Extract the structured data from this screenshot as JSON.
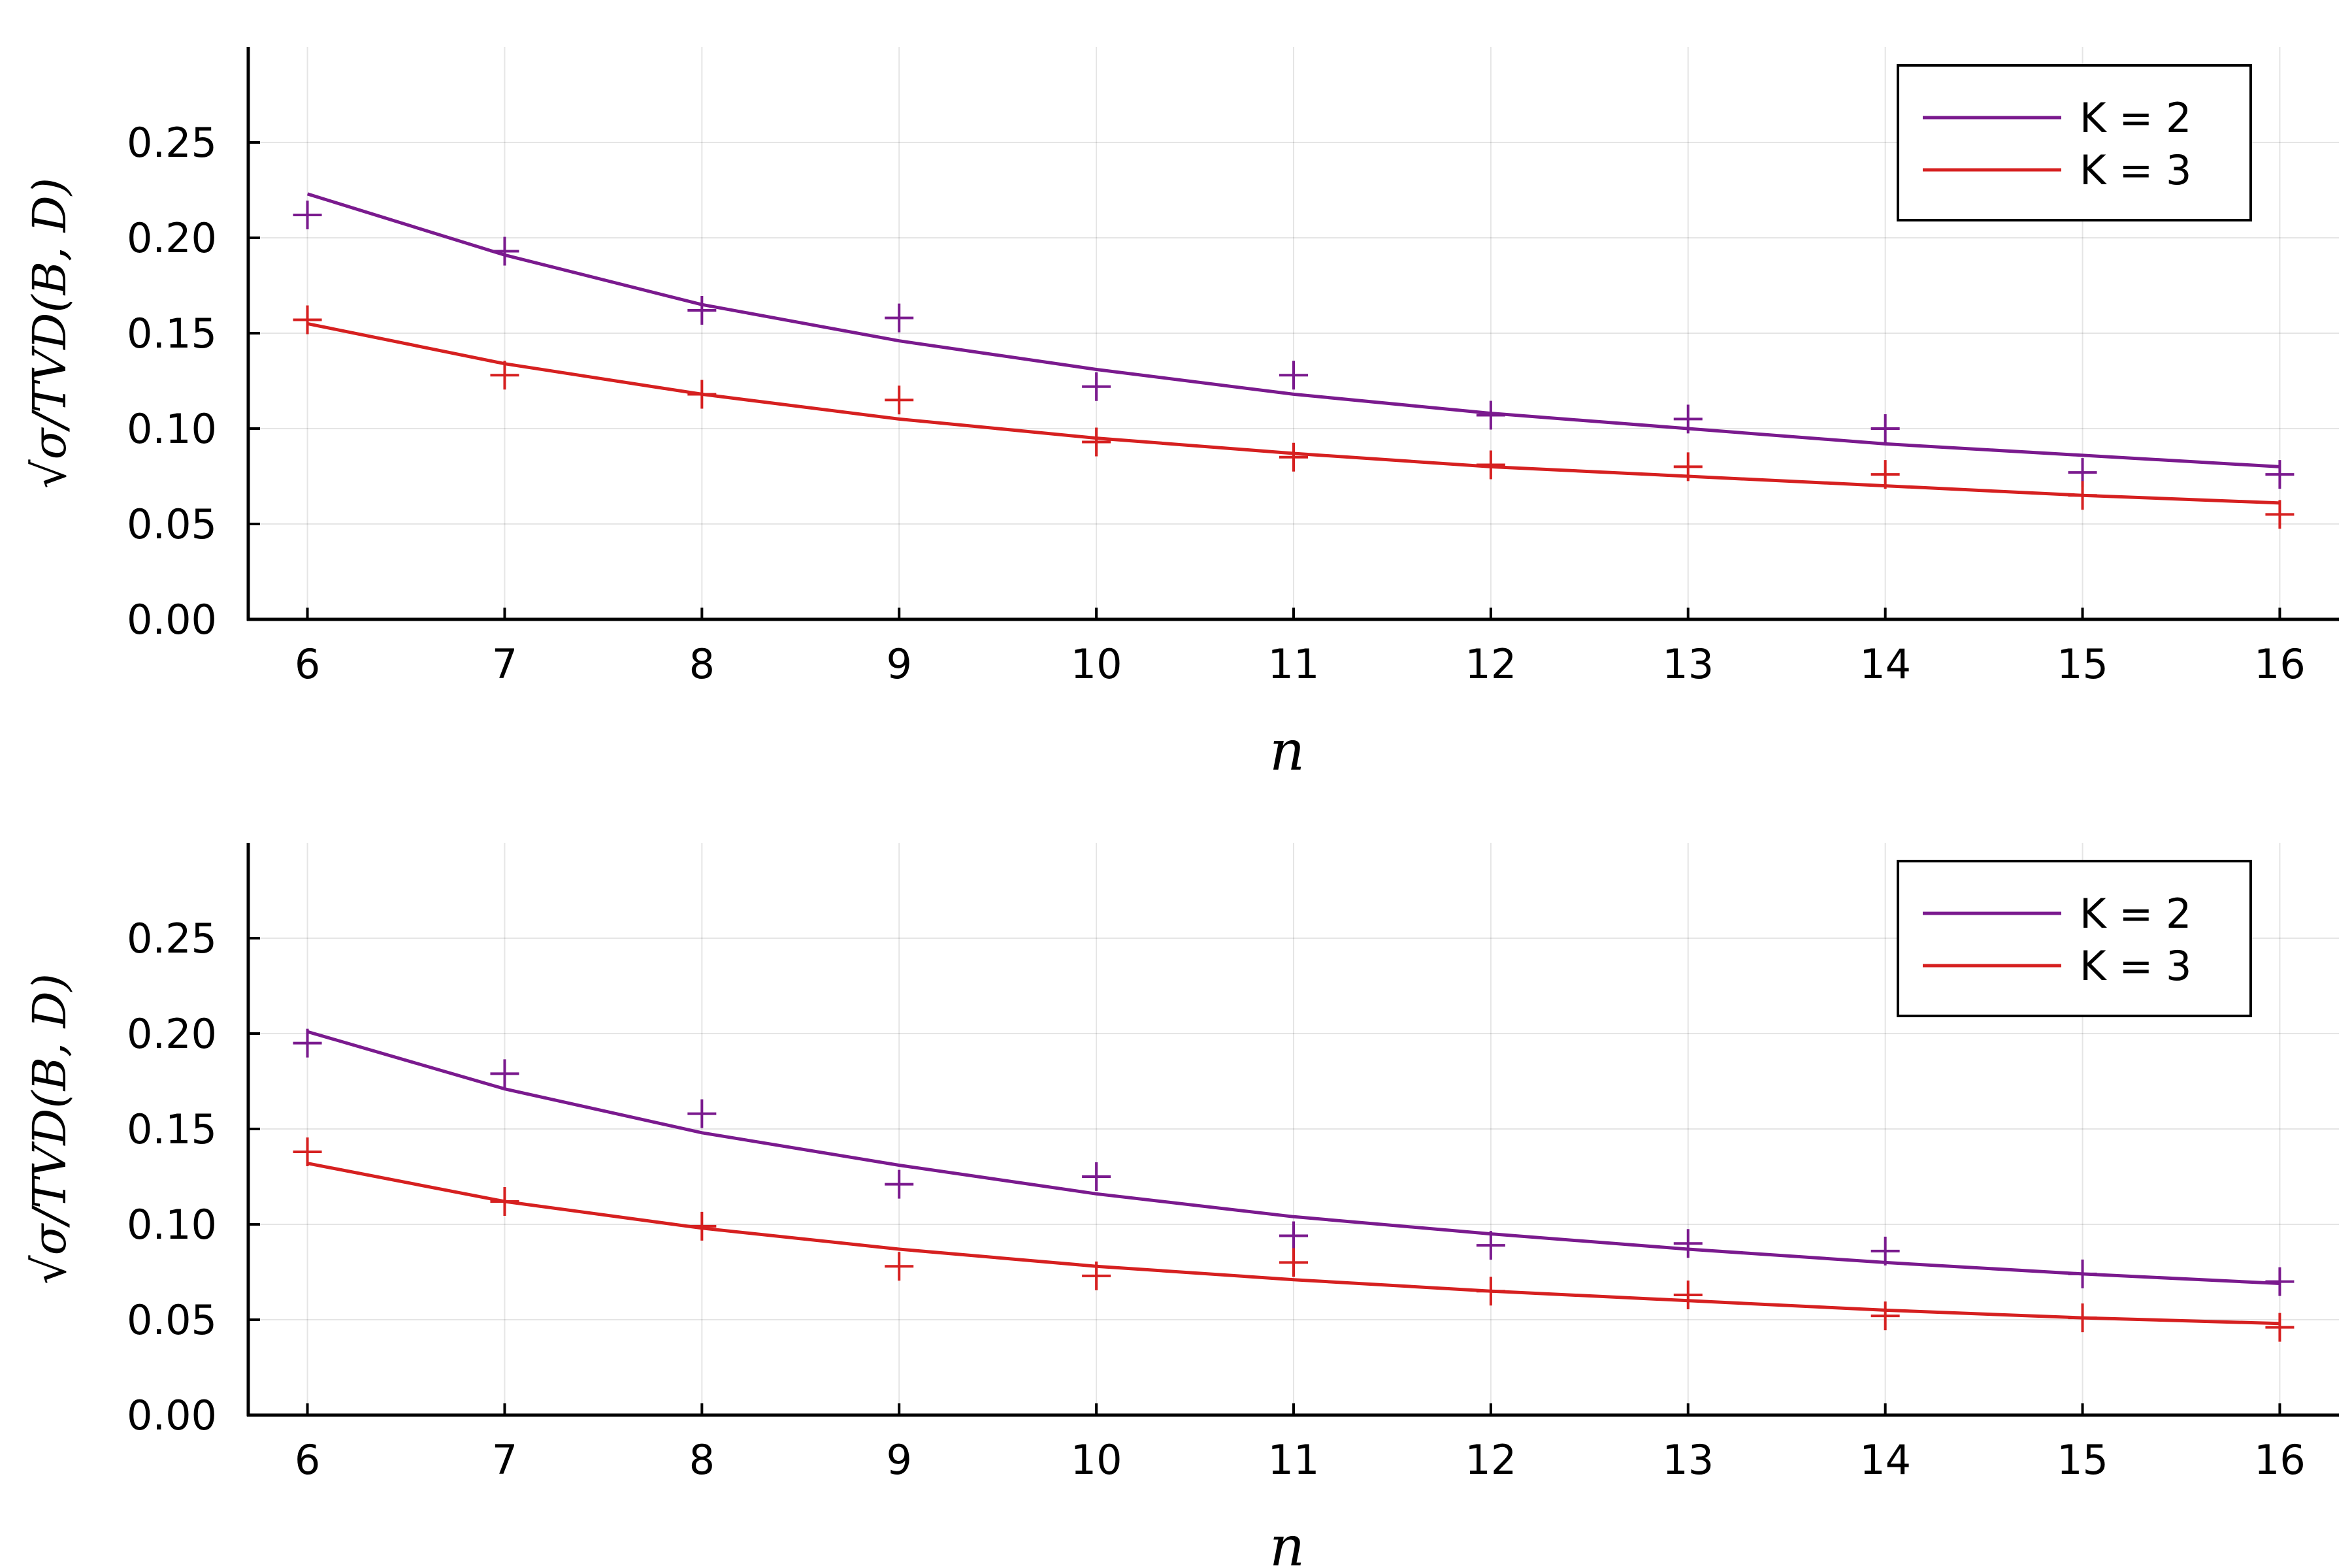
{
  "chart_data": [
    {
      "type": "scatter",
      "xlabel": "n",
      "ylabel": "√σ/TVD(B, D)",
      "x": [
        6,
        7,
        8,
        9,
        10,
        11,
        12,
        13,
        14,
        15,
        16
      ],
      "xticks": [
        "6",
        "7",
        "8",
        "9",
        "10",
        "11",
        "12",
        "13",
        "14",
        "15",
        "16"
      ],
      "yticks": [
        "0.00",
        "0.05",
        "0.10",
        "0.15",
        "0.20",
        "0.25"
      ],
      "xlim": [
        5.7,
        16.3
      ],
      "ylim": [
        0,
        0.3
      ],
      "grid": true,
      "legend": "top-right",
      "series": [
        {
          "name": "K = 2",
          "color": "#7a1a8e",
          "points": [
            0.212,
            0.193,
            0.162,
            0.158,
            0.122,
            0.128,
            0.107,
            0.105,
            0.1,
            0.077,
            0.076
          ],
          "fit": [
            0.223,
            0.191,
            0.165,
            0.146,
            0.131,
            0.118,
            0.108,
            0.1,
            0.092,
            0.086,
            0.08
          ]
        },
        {
          "name": "K = 3",
          "color": "#d62020",
          "points": [
            0.157,
            0.128,
            0.118,
            0.115,
            0.093,
            0.085,
            0.081,
            0.08,
            0.076,
            0.065,
            0.055
          ],
          "fit": [
            0.155,
            0.134,
            0.118,
            0.105,
            0.095,
            0.087,
            0.08,
            0.075,
            0.07,
            0.065,
            0.061
          ]
        }
      ]
    },
    {
      "type": "scatter",
      "xlabel": "n",
      "ylabel": "√σ/TVD(B, D)",
      "x": [
        6,
        7,
        8,
        9,
        10,
        11,
        12,
        13,
        14,
        15,
        16
      ],
      "xticks": [
        "6",
        "7",
        "8",
        "9",
        "10",
        "11",
        "12",
        "13",
        "14",
        "15",
        "16"
      ],
      "yticks": [
        "0.00",
        "0.05",
        "0.10",
        "0.15",
        "0.20",
        "0.25"
      ],
      "xlim": [
        5.7,
        16.3
      ],
      "ylim": [
        0,
        0.3
      ],
      "grid": true,
      "legend": "top-right",
      "series": [
        {
          "name": "K = 2",
          "color": "#7a1a8e",
          "points": [
            0.195,
            0.179,
            0.158,
            0.121,
            0.125,
            0.094,
            0.089,
            0.09,
            0.086,
            0.074,
            0.07
          ],
          "fit": [
            0.201,
            0.171,
            0.148,
            0.131,
            0.116,
            0.104,
            0.095,
            0.087,
            0.08,
            0.074,
            0.069
          ]
        },
        {
          "name": "K = 3",
          "color": "#d62020",
          "points": [
            0.138,
            0.112,
            0.099,
            0.078,
            0.073,
            0.08,
            0.065,
            0.063,
            0.052,
            0.051,
            0.046
          ],
          "fit": [
            0.132,
            0.112,
            0.098,
            0.087,
            0.078,
            0.071,
            0.065,
            0.06,
            0.055,
            0.051,
            0.048
          ]
        }
      ]
    }
  ]
}
